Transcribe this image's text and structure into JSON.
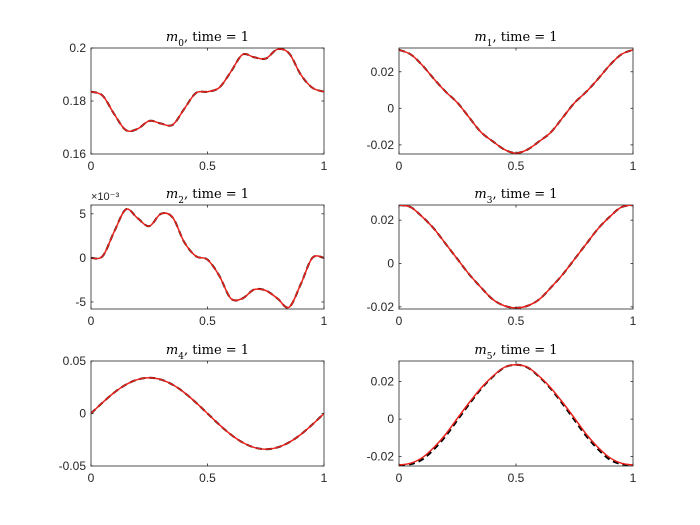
{
  "chart_data": [
    {
      "type": "line",
      "title_var": "m",
      "title_sub": "0",
      "title_rest": ", time = 1",
      "xlim": [
        0,
        1
      ],
      "ylim": [
        0.16,
        0.2
      ],
      "xticks": [
        "0",
        "0.5",
        "1"
      ],
      "yticks": [
        {
          "v": 0.16,
          "label": "0.16"
        },
        {
          "v": 0.18,
          "label": "0.18"
        },
        {
          "v": 0.2,
          "label": "0.2"
        }
      ],
      "exponent": "",
      "series": [
        {
          "color": "#000000",
          "dash": "6,4",
          "x": [
            0,
            0.05,
            0.1,
            0.15,
            0.2,
            0.25,
            0.3,
            0.35,
            0.4,
            0.45,
            0.5,
            0.55,
            0.6,
            0.65,
            0.7,
            0.75,
            0.8,
            0.85,
            0.9,
            0.95,
            1
          ],
          "y": [
            0.1835,
            0.182,
            0.175,
            0.169,
            0.1695,
            0.1725,
            0.1715,
            0.171,
            0.177,
            0.183,
            0.1835,
            0.185,
            0.191,
            0.1975,
            0.1965,
            0.196,
            0.1995,
            0.198,
            0.19,
            0.185,
            0.1835
          ]
        },
        {
          "color": "#e8211b",
          "dash": "",
          "x": [
            0,
            0.05,
            0.1,
            0.15,
            0.2,
            0.25,
            0.3,
            0.35,
            0.4,
            0.45,
            0.5,
            0.55,
            0.6,
            0.65,
            0.7,
            0.75,
            0.8,
            0.85,
            0.9,
            0.95,
            1
          ],
          "y": [
            0.1835,
            0.182,
            0.175,
            0.169,
            0.1695,
            0.1725,
            0.1715,
            0.171,
            0.177,
            0.183,
            0.1835,
            0.185,
            0.191,
            0.1975,
            0.1965,
            0.196,
            0.1995,
            0.198,
            0.19,
            0.185,
            0.1835
          ]
        }
      ]
    },
    {
      "type": "line",
      "title_var": "m",
      "title_sub": "1",
      "title_rest": ", time = 1",
      "xlim": [
        0,
        1
      ],
      "ylim": [
        -0.025,
        0.033
      ],
      "xticks": [
        "0",
        "0.5",
        "1"
      ],
      "yticks": [
        {
          "v": -0.02,
          "label": "-0.02"
        },
        {
          "v": 0,
          "label": "0"
        },
        {
          "v": 0.02,
          "label": "0.02"
        }
      ],
      "exponent": "",
      "series": [
        {
          "color": "#000000",
          "dash": "6,4",
          "x": [
            0,
            0.05,
            0.1,
            0.15,
            0.2,
            0.25,
            0.3,
            0.35,
            0.4,
            0.45,
            0.5,
            0.55,
            0.6,
            0.65,
            0.7,
            0.75,
            0.8,
            0.85,
            0.9,
            0.95,
            1
          ],
          "y": [
            0.032,
            0.0295,
            0.0235,
            0.016,
            0.009,
            0.003,
            -0.005,
            -0.013,
            -0.018,
            -0.0225,
            -0.0245,
            -0.0225,
            -0.018,
            -0.013,
            -0.005,
            0.003,
            0.009,
            0.016,
            0.0235,
            0.0295,
            0.032
          ]
        },
        {
          "color": "#e8211b",
          "dash": "",
          "x": [
            0,
            0.05,
            0.1,
            0.15,
            0.2,
            0.25,
            0.3,
            0.35,
            0.4,
            0.45,
            0.5,
            0.55,
            0.6,
            0.65,
            0.7,
            0.75,
            0.8,
            0.85,
            0.9,
            0.95,
            1
          ],
          "y": [
            0.032,
            0.0295,
            0.0235,
            0.016,
            0.009,
            0.003,
            -0.005,
            -0.013,
            -0.018,
            -0.0225,
            -0.0245,
            -0.0225,
            -0.018,
            -0.013,
            -0.005,
            0.003,
            0.009,
            0.016,
            0.0235,
            0.0295,
            0.032
          ]
        }
      ]
    },
    {
      "type": "line",
      "title_var": "m",
      "title_sub": "2",
      "title_rest": ", time = 1",
      "xlim": [
        0,
        1
      ],
      "ylim": [
        -5.8,
        6.0
      ],
      "xticks": [
        "0",
        "0.5",
        "1"
      ],
      "yticks": [
        {
          "v": -5,
          "label": "-5"
        },
        {
          "v": 0,
          "label": "0"
        },
        {
          "v": 5,
          "label": "5"
        }
      ],
      "exponent": "×10⁻³",
      "series": [
        {
          "color": "#000000",
          "dash": "6,4",
          "x": [
            0,
            0.05,
            0.1,
            0.15,
            0.2,
            0.25,
            0.3,
            0.35,
            0.4,
            0.45,
            0.5,
            0.55,
            0.6,
            0.65,
            0.7,
            0.75,
            0.8,
            0.85,
            0.9,
            0.95,
            1
          ],
          "y": [
            0,
            0.2,
            3.0,
            5.5,
            4.5,
            3.6,
            5.0,
            4.6,
            1.8,
            0.2,
            -0.2,
            -2.0,
            -4.6,
            -4.6,
            -3.6,
            -3.7,
            -4.6,
            -5.6,
            -3.0,
            0.0,
            0
          ]
        },
        {
          "color": "#e8211b",
          "dash": "",
          "x": [
            0,
            0.05,
            0.1,
            0.15,
            0.2,
            0.25,
            0.3,
            0.35,
            0.4,
            0.45,
            0.5,
            0.55,
            0.6,
            0.65,
            0.7,
            0.75,
            0.8,
            0.85,
            0.9,
            0.95,
            1
          ],
          "y": [
            0,
            0.2,
            3.0,
            5.5,
            4.5,
            3.6,
            5.0,
            4.6,
            1.8,
            0.2,
            -0.2,
            -2.0,
            -4.6,
            -4.6,
            -3.6,
            -3.7,
            -4.6,
            -5.6,
            -3.0,
            0.0,
            0
          ]
        }
      ]
    },
    {
      "type": "line",
      "title_var": "m",
      "title_sub": "3",
      "title_rest": ", time = 1",
      "xlim": [
        0,
        1
      ],
      "ylim": [
        -0.021,
        0.027
      ],
      "xticks": [
        "0",
        "0.5",
        "1"
      ],
      "yticks": [
        {
          "v": -0.02,
          "label": "-0.02"
        },
        {
          "v": 0,
          "label": "0"
        },
        {
          "v": 0.02,
          "label": "0.02"
        }
      ],
      "exponent": "",
      "series": [
        {
          "color": "#000000",
          "dash": "6,4",
          "x": [
            0,
            0.05,
            0.1,
            0.15,
            0.2,
            0.25,
            0.3,
            0.35,
            0.4,
            0.45,
            0.5,
            0.55,
            0.6,
            0.65,
            0.7,
            0.75,
            0.8,
            0.85,
            0.9,
            0.95,
            1
          ],
          "y": [
            0.027,
            0.026,
            0.0215,
            0.016,
            0.009,
            0.002,
            -0.005,
            -0.011,
            -0.0165,
            -0.0195,
            -0.0205,
            -0.0195,
            -0.0165,
            -0.011,
            -0.005,
            0.002,
            0.009,
            0.016,
            0.0215,
            0.026,
            0.027
          ]
        },
        {
          "color": "#e8211b",
          "dash": "",
          "x": [
            0,
            0.05,
            0.1,
            0.15,
            0.2,
            0.25,
            0.3,
            0.35,
            0.4,
            0.45,
            0.5,
            0.55,
            0.6,
            0.65,
            0.7,
            0.75,
            0.8,
            0.85,
            0.9,
            0.95,
            1
          ],
          "y": [
            0.027,
            0.026,
            0.0215,
            0.016,
            0.009,
            0.002,
            -0.005,
            -0.011,
            -0.0165,
            -0.0195,
            -0.0205,
            -0.0195,
            -0.0165,
            -0.011,
            -0.005,
            0.002,
            0.009,
            0.016,
            0.0215,
            0.026,
            0.027
          ]
        }
      ]
    },
    {
      "type": "line",
      "title_var": "m",
      "title_sub": "4",
      "title_rest": ", time = 1",
      "xlim": [
        0,
        1
      ],
      "ylim": [
        -0.05,
        0.05
      ],
      "xticks": [
        "0",
        "0.5",
        "1"
      ],
      "yticks": [
        {
          "v": -0.05,
          "label": "-0.05"
        },
        {
          "v": 0,
          "label": "0"
        },
        {
          "v": 0.05,
          "label": "0.05"
        }
      ],
      "exponent": "",
      "series": [
        {
          "color": "#000000",
          "dash": "6,4",
          "x": [
            0,
            0.05,
            0.1,
            0.15,
            0.2,
            0.25,
            0.3,
            0.35,
            0.4,
            0.45,
            0.5,
            0.55,
            0.6,
            0.65,
            0.7,
            0.75,
            0.8,
            0.85,
            0.9,
            0.95,
            1
          ],
          "y": [
            0,
            0.0105,
            0.02,
            0.0275,
            0.0323,
            0.034,
            0.0323,
            0.0275,
            0.02,
            0.0105,
            0,
            -0.0105,
            -0.02,
            -0.0275,
            -0.0323,
            -0.034,
            -0.0323,
            -0.0275,
            -0.02,
            -0.0105,
            0
          ]
        },
        {
          "color": "#e8211b",
          "dash": "",
          "x": [
            0,
            0.05,
            0.1,
            0.15,
            0.2,
            0.25,
            0.3,
            0.35,
            0.4,
            0.45,
            0.5,
            0.55,
            0.6,
            0.65,
            0.7,
            0.75,
            0.8,
            0.85,
            0.9,
            0.95,
            1
          ],
          "y": [
            0,
            0.0105,
            0.02,
            0.0275,
            0.0323,
            0.034,
            0.0323,
            0.0275,
            0.02,
            0.0105,
            0,
            -0.0105,
            -0.02,
            -0.0275,
            -0.0323,
            -0.034,
            -0.0323,
            -0.0275,
            -0.02,
            -0.0105,
            0
          ]
        }
      ]
    },
    {
      "type": "line",
      "title_var": "m",
      "title_sub": "5",
      "title_rest": ", time = 1",
      "xlim": [
        0,
        1
      ],
      "ylim": [
        -0.025,
        0.031
      ],
      "xticks": [
        "0",
        "0.5",
        "1"
      ],
      "yticks": [
        {
          "v": -0.02,
          "label": "-0.02"
        },
        {
          "v": 0,
          "label": "0"
        },
        {
          "v": 0.02,
          "label": "0.02"
        }
      ],
      "exponent": "",
      "series": [
        {
          "color": "#000000",
          "dash": "6,4",
          "x": [
            0,
            0.05,
            0.1,
            0.15,
            0.2,
            0.25,
            0.3,
            0.35,
            0.4,
            0.45,
            0.5,
            0.55,
            0.6,
            0.65,
            0.7,
            0.75,
            0.8,
            0.85,
            0.9,
            0.95,
            1
          ],
          "y": [
            -0.0245,
            -0.024,
            -0.0215,
            -0.016,
            -0.009,
            -0.0005,
            0.008,
            0.016,
            0.0225,
            0.0275,
            0.029,
            0.0275,
            0.0225,
            0.016,
            0.008,
            -0.0005,
            -0.009,
            -0.016,
            -0.0215,
            -0.024,
            -0.0245
          ]
        },
        {
          "color": "#e8211b",
          "dash": "",
          "x": [
            0,
            0.05,
            0.1,
            0.15,
            0.2,
            0.25,
            0.3,
            0.35,
            0.4,
            0.45,
            0.5,
            0.55,
            0.6,
            0.65,
            0.7,
            0.75,
            0.8,
            0.85,
            0.9,
            0.95,
            1
          ],
          "y": [
            -0.0245,
            -0.0235,
            -0.0205,
            -0.015,
            -0.008,
            0.0005,
            0.0088,
            0.0165,
            0.0228,
            0.0276,
            0.029,
            0.0276,
            0.0228,
            0.0165,
            0.0088,
            0.0005,
            -0.008,
            -0.015,
            -0.0205,
            -0.0235,
            -0.0245
          ]
        }
      ]
    }
  ]
}
